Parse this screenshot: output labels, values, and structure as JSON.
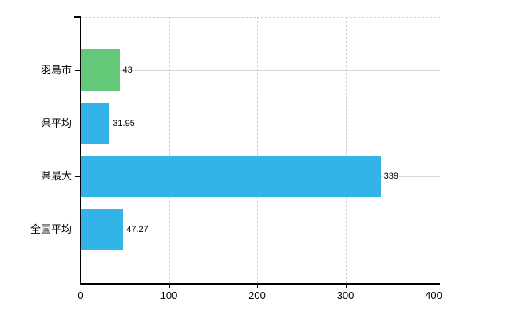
{
  "chart_data": {
    "type": "bar",
    "orientation": "horizontal",
    "categories": [
      "羽島市",
      "県平均",
      "県最大",
      "全国平均"
    ],
    "values": [
      43,
      31.95,
      339,
      47.27
    ],
    "value_labels": [
      "43",
      "31.95",
      "339",
      "47.27"
    ],
    "series": [
      {
        "name": "values",
        "values": [
          43,
          31.95,
          339,
          47.27
        ]
      }
    ],
    "x_ticks": [
      0,
      100,
      200,
      300,
      400
    ],
    "x_tick_labels": [
      "0",
      "100",
      "200",
      "300",
      "400"
    ],
    "xlim": [
      0,
      400
    ],
    "grid": true,
    "legend": false,
    "title": "",
    "xlabel": "",
    "ylabel": "",
    "colors": {
      "bar_highlight": "#63c878",
      "bar_default": "#33b4e8",
      "bar_color_per_category": [
        "#63c878",
        "#33b4e8",
        "#33b4e8",
        "#33b4e8"
      ],
      "axis": "#000000",
      "grid_vertical": "#cfcfcf",
      "grid_horizontal": "#d8d8d8",
      "text": "#000000",
      "background": "#ffffff"
    }
  }
}
